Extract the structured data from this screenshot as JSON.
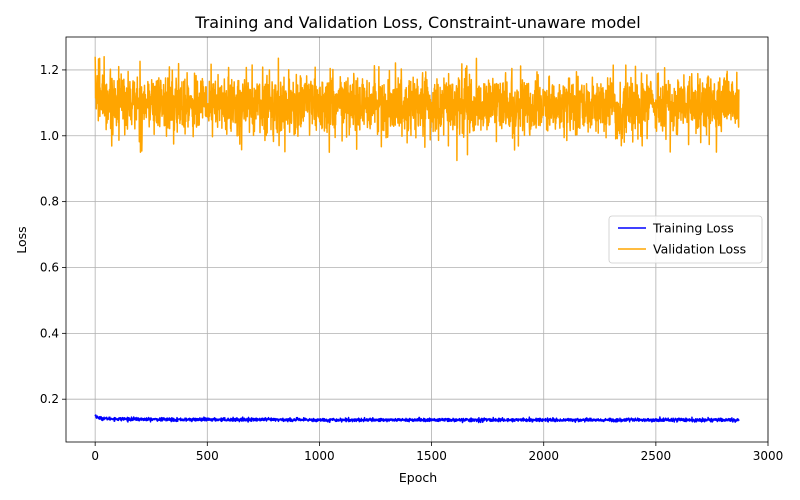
{
  "chart_data": {
    "type": "line",
    "title": "Training and Validation Loss, Constraint-unaware model",
    "xlabel": "Epoch",
    "ylabel": "Loss",
    "xlim": [
      -130,
      3000
    ],
    "ylim": [
      0.07,
      1.3
    ],
    "xticks": [
      0,
      500,
      1000,
      1500,
      2000,
      2500,
      3000
    ],
    "yticks": [
      0.2,
      0.4,
      0.6,
      0.8,
      1.0,
      1.2
    ],
    "grid": true,
    "legend": "center-right",
    "num_epochs": 2870,
    "series": [
      {
        "name": "Training Loss",
        "color": "#0000ff",
        "x": [
          0,
          10,
          25,
          50,
          100,
          200,
          400,
          700,
          1000,
          1500,
          2000,
          2500,
          2870
        ],
        "values": [
          0.152,
          0.145,
          0.142,
          0.141,
          0.14,
          0.139,
          0.138,
          0.138,
          0.137,
          0.137,
          0.137,
          0.137,
          0.137
        ],
        "noise": 0.0025
      },
      {
        "name": "Validation Loss",
        "color": "#ffa500",
        "x": [
          0,
          10,
          40,
          100,
          700,
          1300,
          1700,
          2100,
          2500,
          2870
        ],
        "values": [
          1.16,
          1.12,
          1.11,
          1.1,
          1.095,
          1.09,
          1.09,
          1.09,
          1.09,
          1.09
        ],
        "noise": 0.045,
        "extremes": [
          {
            "x": 0,
            "y": 1.24
          },
          {
            "x": 20,
            "y": 1.235
          },
          {
            "x": 40,
            "y": 1.24
          },
          {
            "x": 105,
            "y": 1.21
          },
          {
            "x": 350,
            "y": 0.975
          },
          {
            "x": 700,
            "y": 1.215
          },
          {
            "x": 820,
            "y": 0.97
          },
          {
            "x": 1470,
            "y": 0.965
          },
          {
            "x": 1700,
            "y": 1.235
          },
          {
            "x": 1870,
            "y": 0.957
          },
          {
            "x": 2420,
            "y": 0.99
          }
        ]
      }
    ]
  }
}
